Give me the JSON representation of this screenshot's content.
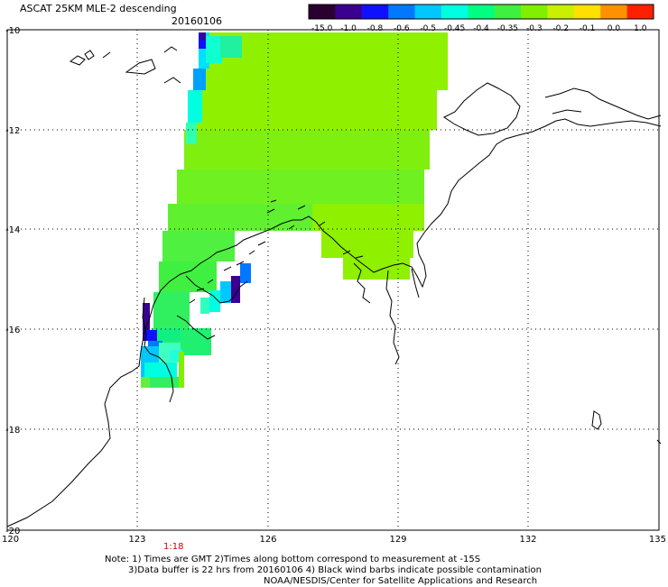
{
  "header": {
    "title": "ASCAT 25KM MLE-2 descending",
    "date": "20160106"
  },
  "colorbar": {
    "labels": [
      "-15.0",
      "-1.0",
      "-0.8",
      "-0.6",
      "-0.5",
      "-0.45",
      "-0.4",
      "-0.35",
      "-0.3",
      "-0.2",
      "-0.1",
      "0.0",
      "1.0"
    ],
    "colors": [
      "#2a0030",
      "#3a0090",
      "#1010ff",
      "#0078ff",
      "#00c8ff",
      "#00ffe0",
      "#00ff80",
      "#40f040",
      "#80f000",
      "#c8f000",
      "#ffe000",
      "#ff9000",
      "#ff2000"
    ]
  },
  "map": {
    "lat_labels": [
      "-10",
      "-12",
      "-14",
      "-16",
      "-18",
      "-20"
    ],
    "lon_labels": [
      "120",
      "123",
      "126",
      "129",
      "132",
      "135"
    ],
    "swath_color": "#8ff000",
    "time_label": "1:18"
  },
  "footer": {
    "note1": "Note: 1) Times are GMT 2)Times along bottom correspond to measurement at -15S",
    "note2": "3)Data buffer is 22 hrs from 20160106 4) Black wind barbs indicate possible contamination",
    "note3": "NOAA/NESDIS/Center for Satellite Applications and Research"
  }
}
